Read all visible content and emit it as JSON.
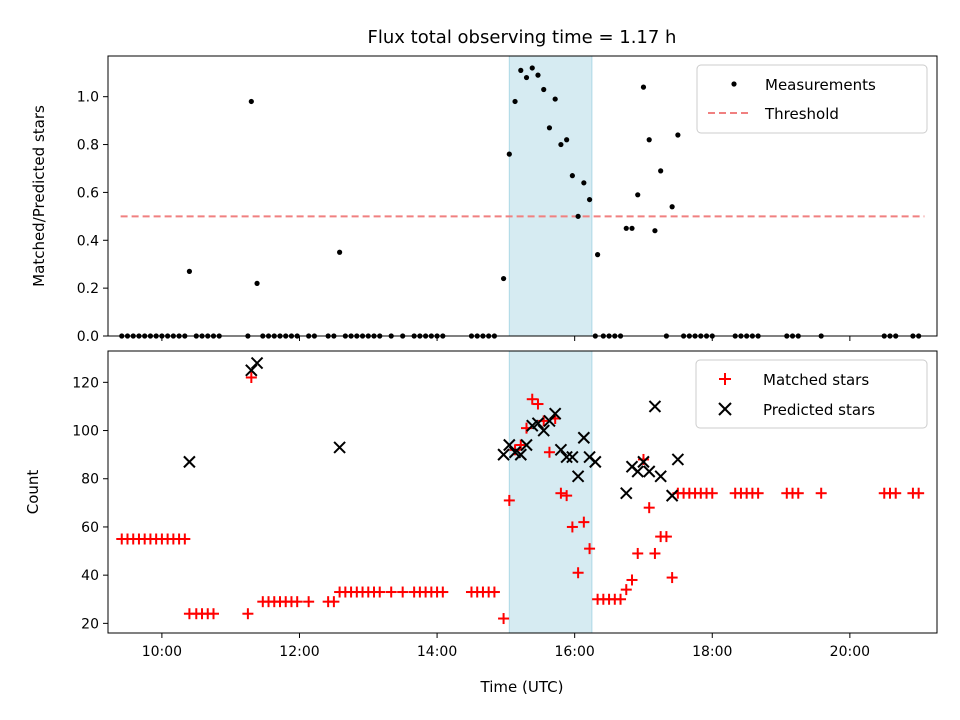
{
  "chart_data": [
    {
      "type": "scatter",
      "title": "Flux total observing time = 1.17 h",
      "xlabel": "",
      "ylabel": "Matched/Predicted stars",
      "x_unit": "hours UTC",
      "xlim": [
        "09:13",
        "21:16"
      ],
      "ylim": [
        0,
        1.17
      ],
      "yticks": [
        "0.0",
        "0.2",
        "0.4",
        "0.6",
        "0.8",
        "1.0"
      ],
      "xticks": [
        "10:00",
        "12:00",
        "14:00",
        "16:00",
        "18:00",
        "20:00"
      ],
      "grid": false,
      "legend_position": "top-right",
      "highlight_span": [
        "15:03",
        "16:15"
      ],
      "threshold": {
        "name": "Threshold",
        "value": 0.5,
        "x_range": [
          "09:24",
          "21:05"
        ],
        "color": "#f08080"
      },
      "series": [
        {
          "name": "Measurements",
          "color": "#000000",
          "points": [
            [
              "09:25",
              0
            ],
            [
              "09:30",
              0
            ],
            [
              "09:35",
              0
            ],
            [
              "09:40",
              0
            ],
            [
              "09:45",
              0
            ],
            [
              "09:50",
              0
            ],
            [
              "09:55",
              0
            ],
            [
              "10:00",
              0
            ],
            [
              "10:05",
              0
            ],
            [
              "10:10",
              0
            ],
            [
              "10:15",
              0
            ],
            [
              "10:20",
              0
            ],
            [
              "10:24",
              0.27
            ],
            [
              "10:30",
              0
            ],
            [
              "10:35",
              0
            ],
            [
              "10:40",
              0
            ],
            [
              "10:45",
              0
            ],
            [
              "10:50",
              0
            ],
            [
              "11:15",
              0
            ],
            [
              "11:18",
              0.98
            ],
            [
              "11:23",
              0.22
            ],
            [
              "11:28",
              0
            ],
            [
              "11:33",
              0
            ],
            [
              "11:38",
              0
            ],
            [
              "11:43",
              0
            ],
            [
              "11:48",
              0
            ],
            [
              "11:53",
              0
            ],
            [
              "11:58",
              0
            ],
            [
              "12:08",
              0
            ],
            [
              "12:13",
              0
            ],
            [
              "12:25",
              0
            ],
            [
              "12:30",
              0
            ],
            [
              "12:35",
              0.35
            ],
            [
              "12:40",
              0
            ],
            [
              "12:45",
              0
            ],
            [
              "12:50",
              0
            ],
            [
              "12:55",
              0
            ],
            [
              "13:00",
              0
            ],
            [
              "13:05",
              0
            ],
            [
              "13:10",
              0
            ],
            [
              "13:20",
              0
            ],
            [
              "13:30",
              0
            ],
            [
              "13:40",
              0
            ],
            [
              "13:45",
              0
            ],
            [
              "13:50",
              0
            ],
            [
              "13:55",
              0
            ],
            [
              "14:00",
              0
            ],
            [
              "14:05",
              0
            ],
            [
              "14:30",
              0
            ],
            [
              "14:35",
              0
            ],
            [
              "14:40",
              0
            ],
            [
              "14:45",
              0
            ],
            [
              "14:50",
              0
            ],
            [
              "14:58",
              0.24
            ],
            [
              "15:03",
              0.76
            ],
            [
              "15:08",
              0.98
            ],
            [
              "15:13",
              1.11
            ],
            [
              "15:18",
              1.08
            ],
            [
              "15:23",
              1.12
            ],
            [
              "15:28",
              1.09
            ],
            [
              "15:33",
              1.03
            ],
            [
              "15:38",
              0.87
            ],
            [
              "15:43",
              0.99
            ],
            [
              "15:48",
              0.8
            ],
            [
              "15:53",
              0.82
            ],
            [
              "15:58",
              0.67
            ],
            [
              "16:03",
              0.5
            ],
            [
              "16:08",
              0.64
            ],
            [
              "16:13",
              0.57
            ],
            [
              "16:18",
              0
            ],
            [
              "16:20",
              0.34
            ],
            [
              "16:25",
              0
            ],
            [
              "16:30",
              0
            ],
            [
              "16:35",
              0
            ],
            [
              "16:40",
              0
            ],
            [
              "16:45",
              0.45
            ],
            [
              "16:50",
              0.45
            ],
            [
              "16:55",
              0.59
            ],
            [
              "17:00",
              1.04
            ],
            [
              "17:05",
              0.82
            ],
            [
              "17:10",
              0.44
            ],
            [
              "17:15",
              0.69
            ],
            [
              "17:20",
              0
            ],
            [
              "17:25",
              0.54
            ],
            [
              "17:30",
              0.84
            ],
            [
              "17:35",
              0
            ],
            [
              "17:40",
              0
            ],
            [
              "17:45",
              0
            ],
            [
              "17:50",
              0
            ],
            [
              "17:55",
              0
            ],
            [
              "18:00",
              0
            ],
            [
              "18:20",
              0
            ],
            [
              "18:25",
              0
            ],
            [
              "18:30",
              0
            ],
            [
              "18:35",
              0
            ],
            [
              "18:40",
              0
            ],
            [
              "19:05",
              0
            ],
            [
              "19:10",
              0
            ],
            [
              "19:15",
              0
            ],
            [
              "19:35",
              0
            ],
            [
              "20:30",
              0
            ],
            [
              "20:35",
              0
            ],
            [
              "20:40",
              0
            ],
            [
              "20:55",
              0
            ],
            [
              "21:00",
              0
            ]
          ]
        }
      ]
    },
    {
      "type": "scatter",
      "title": "",
      "xlabel": "Time (UTC)",
      "ylabel": "Count",
      "x_unit": "hours UTC",
      "xlim": [
        "09:13",
        "21:16"
      ],
      "ylim": [
        16,
        133
      ],
      "yticks": [
        "20",
        "40",
        "60",
        "80",
        "100",
        "120"
      ],
      "xticks": [
        "10:00",
        "12:00",
        "14:00",
        "16:00",
        "18:00",
        "20:00"
      ],
      "grid": false,
      "legend_position": "top-right",
      "highlight_span": [
        "15:03",
        "16:15"
      ],
      "series": [
        {
          "name": "Matched stars",
          "color": "#ff0000",
          "marker": "plus",
          "points": [
            [
              "09:25",
              55
            ],
            [
              "09:30",
              55
            ],
            [
              "09:35",
              55
            ],
            [
              "09:40",
              55
            ],
            [
              "09:45",
              55
            ],
            [
              "09:50",
              55
            ],
            [
              "09:55",
              55
            ],
            [
              "10:00",
              55
            ],
            [
              "10:05",
              55
            ],
            [
              "10:10",
              55
            ],
            [
              "10:15",
              55
            ],
            [
              "10:20",
              55
            ],
            [
              "10:24",
              24
            ],
            [
              "10:30",
              24
            ],
            [
              "10:35",
              24
            ],
            [
              "10:40",
              24
            ],
            [
              "10:45",
              24
            ],
            [
              "11:15",
              24
            ],
            [
              "11:18",
              122
            ],
            [
              "11:28",
              29
            ],
            [
              "11:33",
              29
            ],
            [
              "11:38",
              29
            ],
            [
              "11:43",
              29
            ],
            [
              "11:48",
              29
            ],
            [
              "11:53",
              29
            ],
            [
              "11:58",
              29
            ],
            [
              "12:08",
              29
            ],
            [
              "12:25",
              29
            ],
            [
              "12:30",
              29
            ],
            [
              "12:35",
              33
            ],
            [
              "12:40",
              33
            ],
            [
              "12:45",
              33
            ],
            [
              "12:50",
              33
            ],
            [
              "12:55",
              33
            ],
            [
              "13:00",
              33
            ],
            [
              "13:05",
              33
            ],
            [
              "13:10",
              33
            ],
            [
              "13:20",
              33
            ],
            [
              "13:30",
              33
            ],
            [
              "13:40",
              33
            ],
            [
              "13:45",
              33
            ],
            [
              "13:50",
              33
            ],
            [
              "13:55",
              33
            ],
            [
              "14:00",
              33
            ],
            [
              "14:05",
              33
            ],
            [
              "14:30",
              33
            ],
            [
              "14:35",
              33
            ],
            [
              "14:40",
              33
            ],
            [
              "14:45",
              33
            ],
            [
              "14:50",
              33
            ],
            [
              "14:58",
              22
            ],
            [
              "15:03",
              71
            ],
            [
              "15:08",
              92
            ],
            [
              "15:13",
              94
            ],
            [
              "15:18",
              101
            ],
            [
              "15:23",
              113
            ],
            [
              "15:28",
              111
            ],
            [
              "15:33",
              104
            ],
            [
              "15:38",
              91
            ],
            [
              "15:43",
              105
            ],
            [
              "15:48",
              74
            ],
            [
              "15:53",
              73
            ],
            [
              "15:58",
              60
            ],
            [
              "16:03",
              41
            ],
            [
              "16:08",
              62
            ],
            [
              "16:13",
              51
            ],
            [
              "16:20",
              30
            ],
            [
              "16:25",
              30
            ],
            [
              "16:30",
              30
            ],
            [
              "16:35",
              30
            ],
            [
              "16:40",
              30
            ],
            [
              "16:45",
              34
            ],
            [
              "16:50",
              38
            ],
            [
              "16:55",
              49
            ],
            [
              "17:00",
              88
            ],
            [
              "17:05",
              68
            ],
            [
              "17:10",
              49
            ],
            [
              "17:15",
              56
            ],
            [
              "17:20",
              56
            ],
            [
              "17:25",
              39
            ],
            [
              "17:30",
              74
            ],
            [
              "17:35",
              74
            ],
            [
              "17:40",
              74
            ],
            [
              "17:45",
              74
            ],
            [
              "17:50",
              74
            ],
            [
              "17:55",
              74
            ],
            [
              "18:00",
              74
            ],
            [
              "18:20",
              74
            ],
            [
              "18:25",
              74
            ],
            [
              "18:30",
              74
            ],
            [
              "18:35",
              74
            ],
            [
              "18:40",
              74
            ],
            [
              "19:05",
              74
            ],
            [
              "19:10",
              74
            ],
            [
              "19:15",
              74
            ],
            [
              "19:35",
              74
            ],
            [
              "20:30",
              74
            ],
            [
              "20:35",
              74
            ],
            [
              "20:40",
              74
            ],
            [
              "20:55",
              74
            ],
            [
              "21:00",
              74
            ]
          ]
        },
        {
          "name": "Predicted stars",
          "color": "#000000",
          "marker": "x",
          "points": [
            [
              "10:24",
              87
            ],
            [
              "11:18",
              125
            ],
            [
              "11:23",
              128
            ],
            [
              "12:35",
              93
            ],
            [
              "14:58",
              90
            ],
            [
              "15:03",
              94
            ],
            [
              "15:08",
              91
            ],
            [
              "15:13",
              90
            ],
            [
              "15:18",
              94
            ],
            [
              "15:23",
              102
            ],
            [
              "15:28",
              103
            ],
            [
              "15:33",
              100
            ],
            [
              "15:38",
              104
            ],
            [
              "15:43",
              107
            ],
            [
              "15:48",
              92
            ],
            [
              "15:53",
              89
            ],
            [
              "15:58",
              89
            ],
            [
              "16:03",
              81
            ],
            [
              "16:08",
              97
            ],
            [
              "16:13",
              89
            ],
            [
              "16:18",
              87
            ],
            [
              "16:45",
              74
            ],
            [
              "16:50",
              85
            ],
            [
              "16:55",
              83
            ],
            [
              "17:00",
              87
            ],
            [
              "17:05",
              83
            ],
            [
              "17:10",
              110
            ],
            [
              "17:15",
              81
            ],
            [
              "17:25",
              73
            ],
            [
              "17:30",
              88
            ]
          ]
        }
      ]
    }
  ]
}
